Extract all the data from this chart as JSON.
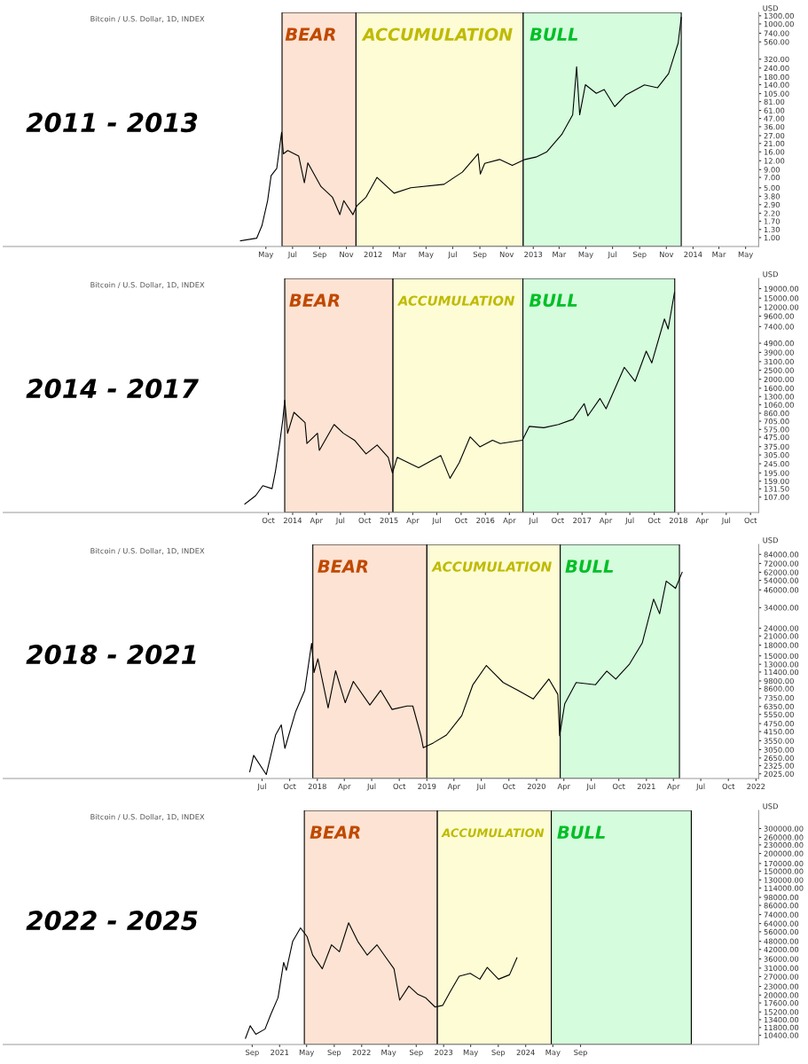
{
  "chart_data": [
    {
      "type": "line",
      "title": "2011 - 2013",
      "subtitle": "Bitcoin / U.S. Dollar, 1D, INDEX",
      "ylabel": "USD",
      "log": true,
      "x": [
        "2011-03-04",
        "2011-04-10",
        "2011-04-22",
        "2011-05-05",
        "2011-05-13",
        "2011-05-26",
        "2011-06-06",
        "2011-06-10",
        "2011-06-20",
        "2011-07-15",
        "2011-07-28",
        "2011-08-05",
        "2011-09-04",
        "2011-09-30",
        "2011-10-17",
        "2011-10-26",
        "2011-11-16",
        "2011-11-25",
        "2011-12-16",
        "2012-01-10",
        "2012-02-18",
        "2012-03-27",
        "2012-06-11",
        "2012-07-23",
        "2012-08-28",
        "2012-09-02",
        "2012-09-12",
        "2012-10-16",
        "2012-11-14",
        "2012-12-13",
        "2013-01-07",
        "2013-02-01",
        "2013-03-07",
        "2013-04-01",
        "2013-04-10",
        "2013-04-17",
        "2013-04-30",
        "2013-05-25",
        "2013-06-12",
        "2013-07-06",
        "2013-08-01",
        "2013-09-12",
        "2013-10-12",
        "2013-11-06",
        "2013-11-28",
        "2013-12-05"
      ],
      "series": [
        {
          "color": "#000000",
          "values": [
            0.9,
            0.98,
            1.47,
            3.3,
            7.4,
            9.4,
            30,
            15,
            16.7,
            14,
            5.9,
            11.2,
            5.2,
            3.7,
            2.1,
            3.3,
            2.1,
            2.8,
            3.7,
            7.0,
            4.2,
            5.0,
            5.6,
            8.3,
            15,
            7.8,
            11,
            12.5,
            10.3,
            12.5,
            13.5,
            16,
            28,
            53,
            250,
            53,
            140,
            106,
            120,
            69,
            101,
            139,
            127,
            200,
            540,
            1230
          ]
        }
      ],
      "xlim": [
        "2009-09-08",
        "2014-05-31"
      ],
      "ylim": [
        0.75,
        1450
      ],
      "xticks": [
        {
          "value": "2011-05-01",
          "label": "May"
        },
        {
          "value": "2011-07-01",
          "label": "Jul"
        },
        {
          "value": "2011-09-01",
          "label": "Sep"
        },
        {
          "value": "2011-11-01",
          "label": "Nov"
        },
        {
          "value": "2012-01-01",
          "label": "2012"
        },
        {
          "value": "2012-03-01",
          "label": "Mar"
        },
        {
          "value": "2012-05-01",
          "label": "May"
        },
        {
          "value": "2012-07-01",
          "label": "Jul"
        },
        {
          "value": "2012-09-01",
          "label": "Sep"
        },
        {
          "value": "2012-11-01",
          "label": "Nov"
        },
        {
          "value": "2013-01-01",
          "label": "2013"
        },
        {
          "value": "2013-03-01",
          "label": "Mar"
        },
        {
          "value": "2013-05-01",
          "label": "May"
        },
        {
          "value": "2013-07-01",
          "label": "Jul"
        },
        {
          "value": "2013-09-01",
          "label": "Sep"
        },
        {
          "value": "2013-11-01",
          "label": "Nov"
        },
        {
          "value": "2014-01-01",
          "label": "2014"
        },
        {
          "value": "2014-03-01",
          "label": "Mar"
        },
        {
          "value": "2014-05-01",
          "label": "May"
        }
      ],
      "yticks": [
        {
          "value": 1,
          "label": "1.00"
        },
        {
          "value": 1.3,
          "label": "1.30"
        },
        {
          "value": 1.7,
          "label": "1.70"
        },
        {
          "value": 2.2,
          "label": "2.20"
        },
        {
          "value": 2.9,
          "label": "2.90"
        },
        {
          "value": 3.8,
          "label": "3.80"
        },
        {
          "value": 5,
          "label": "5.00"
        },
        {
          "value": 7,
          "label": "7.00"
        },
        {
          "value": 9,
          "label": "9.00"
        },
        {
          "value": 12,
          "label": "12.00"
        },
        {
          "value": 16,
          "label": "16.00"
        },
        {
          "value": 21,
          "label": "21.00"
        },
        {
          "value": 27,
          "label": "27.00"
        },
        {
          "value": 36,
          "label": "36.00"
        },
        {
          "value": 47,
          "label": "47.00"
        },
        {
          "value": 61,
          "label": "61.00"
        },
        {
          "value": 81,
          "label": "81.00"
        },
        {
          "value": 105,
          "label": "105.00"
        },
        {
          "value": 140,
          "label": "140.00"
        },
        {
          "value": 180,
          "label": "180.00"
        },
        {
          "value": 240,
          "label": "240.00"
        },
        {
          "value": 320,
          "label": "320.00"
        },
        {
          "value": 560,
          "label": "560.00"
        },
        {
          "value": 740,
          "label": "740.00"
        },
        {
          "value": 1000,
          "label": "1000.00"
        },
        {
          "value": 1300,
          "label": "1300.00"
        }
      ],
      "bands": [
        {
          "axis": "x",
          "from": "2011-06-07",
          "to": "2011-11-23",
          "label": "BEAR",
          "color": "#fde3d3"
        },
        {
          "axis": "x",
          "from": "2011-11-23",
          "to": "2012-12-09",
          "label": "ACCUMULATION",
          "color": "#fdfcd5"
        },
        {
          "axis": "x",
          "from": "2012-12-09",
          "to": "2013-12-05",
          "label": "BULL",
          "color": "#d5fcdd"
        }
      ]
    },
    {
      "type": "line",
      "title": "2014 - 2017",
      "subtitle": "Bitcoin / U.S. Dollar, 1D, INDEX",
      "ylabel": "USD",
      "log": true,
      "x": [
        "2013-07-04",
        "2013-08-14",
        "2013-09-10",
        "2013-10-15",
        "2013-10-28",
        "2013-11-11",
        "2013-11-25",
        "2013-12-02",
        "2013-12-13",
        "2014-01-06",
        "2014-02-17",
        "2014-02-24",
        "2014-04-05",
        "2014-04-12",
        "2014-06-07",
        "2014-07-12",
        "2014-08-23",
        "2014-10-06",
        "2014-11-17",
        "2014-12-29",
        "2015-01-14",
        "2015-02-01",
        "2015-04-23",
        "2015-07-16",
        "2015-08-20",
        "2015-09-24",
        "2015-11-04",
        "2015-12-11",
        "2016-01-28",
        "2016-02-26",
        "2016-05-20",
        "2016-06-15",
        "2016-08-09",
        "2016-10-04",
        "2016-11-28",
        "2017-01-09",
        "2017-01-23",
        "2017-03-10",
        "2017-04-02",
        "2017-06-10",
        "2017-07-21",
        "2017-09-01",
        "2017-09-22",
        "2017-11-09",
        "2017-11-23",
        "2017-12-17"
      ],
      "series": [
        {
          "color": "#000000",
          "values": [
            90,
            111,
            142,
            132,
            204,
            372,
            740,
            1190,
            523,
            880,
            680,
            406,
            523,
            341,
            650,
            523,
            440,
            313,
            390,
            287,
            195,
            287,
            222,
            300,
            171,
            252,
            478,
            373,
            440,
            405,
            440,
            620,
            600,
            650,
            740,
            1090,
            806,
            1240,
            960,
            2690,
            1900,
            4020,
            3000,
            8940,
            6970,
            17300
          ]
        }
      ],
      "xlim": [
        "2011-01-01",
        "2018-11-01"
      ],
      "ylim": [
        73,
        24500
      ],
      "xticks": [
        {
          "value": "2013-10-01",
          "label": "Oct"
        },
        {
          "value": "2014-01-01",
          "label": "2014"
        },
        {
          "value": "2014-04-01",
          "label": "Apr"
        },
        {
          "value": "2014-07-01",
          "label": "Jul"
        },
        {
          "value": "2014-10-01",
          "label": "Oct"
        },
        {
          "value": "2015-01-01",
          "label": "2015"
        },
        {
          "value": "2015-04-01",
          "label": "Apr"
        },
        {
          "value": "2015-07-01",
          "label": "Jul"
        },
        {
          "value": "2015-10-01",
          "label": "Oct"
        },
        {
          "value": "2016-01-01",
          "label": "2016"
        },
        {
          "value": "2016-04-01",
          "label": "Apr"
        },
        {
          "value": "2016-07-01",
          "label": "Jul"
        },
        {
          "value": "2016-10-01",
          "label": "Oct"
        },
        {
          "value": "2017-01-01",
          "label": "2017"
        },
        {
          "value": "2017-04-01",
          "label": "Apr"
        },
        {
          "value": "2017-07-01",
          "label": "Jul"
        },
        {
          "value": "2017-10-01",
          "label": "Oct"
        },
        {
          "value": "2018-01-01",
          "label": "2018"
        },
        {
          "value": "2018-04-01",
          "label": "Apr"
        },
        {
          "value": "2018-07-01",
          "label": "Jul"
        },
        {
          "value": "2018-10-01",
          "label": "Oct"
        }
      ],
      "yticks": [
        {
          "value": 107,
          "label": "107.00"
        },
        {
          "value": 131.5,
          "label": "131.50"
        },
        {
          "value": 159,
          "label": "159.00"
        },
        {
          "value": 195,
          "label": "195.00"
        },
        {
          "value": 245,
          "label": "245.00"
        },
        {
          "value": 305,
          "label": "305.00"
        },
        {
          "value": 375,
          "label": "375.00"
        },
        {
          "value": 475,
          "label": "475.00"
        },
        {
          "value": 575,
          "label": "575.00"
        },
        {
          "value": 705,
          "label": "705.00"
        },
        {
          "value": 860,
          "label": "860.00"
        },
        {
          "value": 1060,
          "label": "1060.00"
        },
        {
          "value": 1300,
          "label": "1300.00"
        },
        {
          "value": 1600,
          "label": "1600.00"
        },
        {
          "value": 2000,
          "label": "2000.00"
        },
        {
          "value": 2500,
          "label": "2500.00"
        },
        {
          "value": 3100,
          "label": "3100.00"
        },
        {
          "value": 3900,
          "label": "3900.00"
        },
        {
          "value": 4900,
          "label": "4900.00"
        },
        {
          "value": 7400,
          "label": "7400.00"
        },
        {
          "value": 9600,
          "label": "9600.00"
        },
        {
          "value": 12000,
          "label": "12000.00"
        },
        {
          "value": 15000,
          "label": "15000.00"
        },
        {
          "value": 19000,
          "label": "19000.00"
        }
      ],
      "bands": [
        {
          "axis": "x",
          "from": "2013-12-02",
          "to": "2015-01-16",
          "label": "BEAR",
          "color": "#fde3d3"
        },
        {
          "axis": "x",
          "from": "2015-01-16",
          "to": "2016-05-22",
          "label": "ACCUMULATION",
          "color": "#fdfcd5"
        },
        {
          "axis": "x",
          "from": "2016-05-22",
          "to": "2017-12-18",
          "label": "BULL",
          "color": "#d5fcdd"
        }
      ]
    },
    {
      "type": "line",
      "title": "2018 - 2021",
      "subtitle": "Bitcoin / U.S. Dollar, 1D, INDEX",
      "ylabel": "USD",
      "log": true,
      "x": [
        "2017-05-21",
        "2017-06-03",
        "2017-07-15",
        "2017-08-15",
        "2017-09-03",
        "2017-09-15",
        "2017-10-21",
        "2017-11-20",
        "2017-12-13",
        "2017-12-21",
        "2018-01-03",
        "2018-02-06",
        "2018-03-03",
        "2018-04-04",
        "2018-05-01",
        "2018-06-25",
        "2018-07-31",
        "2018-09-07",
        "2018-10-27",
        "2018-11-15",
        "2018-12-12",
        "2018-12-20",
        "2019-01-22",
        "2019-03-07",
        "2019-04-27",
        "2019-06-03",
        "2019-07-18",
        "2019-09-12",
        "2019-11-01",
        "2019-12-21",
        "2020-02-11",
        "2020-03-12",
        "2020-03-18",
        "2020-04-04",
        "2020-05-12",
        "2020-07-15",
        "2020-08-22",
        "2020-09-21",
        "2020-11-06",
        "2020-12-18",
        "2021-01-25",
        "2021-02-14",
        "2021-03-08",
        "2021-04-08",
        "2021-04-30"
      ],
      "series": [
        {
          "color": "#000000",
          "values": [
            2100,
            2770,
            2000,
            3910,
            4650,
            3120,
            5830,
            8340,
            18570,
            11300,
            14270,
            6200,
            11650,
            6770,
            9720,
            6510,
            8340,
            6040,
            6400,
            6400,
            3870,
            3150,
            3420,
            3910,
            5440,
            9180,
            12740,
            9540,
            8340,
            7210,
            10120,
            7800,
            3870,
            6650,
            9540,
            9180,
            11590,
            10120,
            13080,
            18620,
            39300,
            30700,
            53400,
            47200,
            62000
          ]
        }
      ],
      "xlim": [
        "2015-02-20",
        "2022-01-10"
      ],
      "ylim": [
        1870,
        99500
      ],
      "xticks": [
        {
          "value": "2017-07-01",
          "label": "Jul"
        },
        {
          "value": "2017-10-01",
          "label": "Oct"
        },
        {
          "value": "2018-01-01",
          "label": "2018"
        },
        {
          "value": "2018-04-01",
          "label": "Apr"
        },
        {
          "value": "2018-07-01",
          "label": "Jul"
        },
        {
          "value": "2018-10-01",
          "label": "Oct"
        },
        {
          "value": "2019-01-01",
          "label": "2019"
        },
        {
          "value": "2019-04-01",
          "label": "Apr"
        },
        {
          "value": "2019-07-01",
          "label": "Jul"
        },
        {
          "value": "2019-10-01",
          "label": "Oct"
        },
        {
          "value": "2020-01-01",
          "label": "2020"
        },
        {
          "value": "2020-04-01",
          "label": "Apr"
        },
        {
          "value": "2020-07-01",
          "label": "Jul"
        },
        {
          "value": "2020-10-01",
          "label": "Oct"
        },
        {
          "value": "2021-01-01",
          "label": "2021"
        },
        {
          "value": "2021-04-01",
          "label": "Apr"
        },
        {
          "value": "2021-07-01",
          "label": "Jul"
        },
        {
          "value": "2021-10-01",
          "label": "Oct"
        },
        {
          "value": "2022-01-01",
          "label": "2022"
        }
      ],
      "yticks": [
        {
          "value": 2025,
          "label": "2025.00"
        },
        {
          "value": 2325,
          "label": "2325.00"
        },
        {
          "value": 2650,
          "label": "2650.00"
        },
        {
          "value": 3050,
          "label": "3050.00"
        },
        {
          "value": 3550,
          "label": "3550.00"
        },
        {
          "value": 4150,
          "label": "4150.00"
        },
        {
          "value": 4750,
          "label": "4750.00"
        },
        {
          "value": 5550,
          "label": "5550.00"
        },
        {
          "value": 6350,
          "label": "6350.00"
        },
        {
          "value": 7350,
          "label": "7350.00"
        },
        {
          "value": 8600,
          "label": "8600.00"
        },
        {
          "value": 9800,
          "label": "9800.00"
        },
        {
          "value": 11400,
          "label": "11400.00"
        },
        {
          "value": 13000,
          "label": "13000.00"
        },
        {
          "value": 15000,
          "label": "15000.00"
        },
        {
          "value": 18000,
          "label": "18000.00"
        },
        {
          "value": 21000,
          "label": "21000.00"
        },
        {
          "value": 24000,
          "label": "24000.00"
        },
        {
          "value": 34000,
          "label": "34000.00"
        },
        {
          "value": 46000,
          "label": "46000.00"
        },
        {
          "value": 54000,
          "label": "54000.00"
        },
        {
          "value": 62000,
          "label": "62000.00"
        },
        {
          "value": 72000,
          "label": "72000.00"
        },
        {
          "value": 84000,
          "label": "84000.00"
        }
      ],
      "bands": [
        {
          "axis": "x",
          "from": "2017-12-17",
          "to": "2019-01-01",
          "label": "BEAR",
          "color": "#fde3d3"
        },
        {
          "axis": "x",
          "from": "2019-01-01",
          "to": "2020-03-20",
          "label": "ACCUMULATION",
          "color": "#fdfcd5"
        },
        {
          "axis": "x",
          "from": "2020-03-20",
          "to": "2021-04-21",
          "label": "BULL",
          "color": "#d5fcdd"
        }
      ]
    },
    {
      "type": "line",
      "title": "2022 - 2025",
      "subtitle": "Bitcoin / U.S. Dollar, 1D, INDEX",
      "ylabel": "USD",
      "log": true,
      "x": [
        "2020-08-02",
        "2020-08-23",
        "2020-09-17",
        "2020-10-28",
        "2020-11-22",
        "2020-12-25",
        "2021-01-19",
        "2021-01-31",
        "2021-02-28",
        "2021-04-04",
        "2021-05-03",
        "2021-05-28",
        "2021-07-10",
        "2021-08-20",
        "2021-09-24",
        "2021-11-04",
        "2021-12-15",
        "2022-01-26",
        "2022-03-10",
        "2022-04-20",
        "2022-05-25",
        "2022-06-19",
        "2022-07-30",
        "2022-09-09",
        "2022-10-12",
        "2022-11-24",
        "2022-12-28",
        "2023-01-30",
        "2023-03-11",
        "2023-04-29",
        "2023-06-11",
        "2023-07-14",
        "2023-09-02",
        "2023-10-21",
        "2023-11-23"
      ],
      "series": [
        {
          "color": "#000000",
          "values": [
            9900,
            12140,
            10570,
            11500,
            14500,
            19180,
            34000,
            29930,
            47800,
            59600,
            51800,
            38300,
            30650,
            45300,
            40480,
            64800,
            47800,
            38300,
            45300,
            36640,
            30650,
            18400,
            23130,
            20190,
            19180,
            16460,
            16920,
            21110,
            27180,
            28450,
            25880,
            31380,
            25880,
            27810,
            36640
          ]
        }
      ],
      "xlim": [
        "2017-08-20",
        "2026-11-03"
      ],
      "ylim": [
        8950,
        403000
      ],
      "xticks": [
        {
          "value": "2020-09-01",
          "label": "Sep"
        },
        {
          "value": "2021-01-01",
          "label": "2021"
        },
        {
          "value": "2021-05-01",
          "label": "May"
        },
        {
          "value": "2021-09-01",
          "label": "Sep"
        },
        {
          "value": "2022-01-01",
          "label": "2022"
        },
        {
          "value": "2022-05-01",
          "label": "May"
        },
        {
          "value": "2022-09-01",
          "label": "Sep"
        },
        {
          "value": "2023-01-01",
          "label": "2023"
        },
        {
          "value": "2023-05-01",
          "label": "May"
        },
        {
          "value": "2023-09-01",
          "label": "Sep"
        },
        {
          "value": "2024-01-01",
          "label": "2024"
        },
        {
          "value": "2024-05-01",
          "label": "May"
        },
        {
          "value": "2024-09-01",
          "label": "Sep"
        }
      ],
      "yticks": [
        {
          "value": 10400,
          "label": "10400.00"
        },
        {
          "value": 11800,
          "label": "11800.00"
        },
        {
          "value": 13400,
          "label": "13400.00"
        },
        {
          "value": 15200,
          "label": "15200.00"
        },
        {
          "value": 17600,
          "label": "17600.00"
        },
        {
          "value": 20000,
          "label": "20000.00"
        },
        {
          "value": 23000,
          "label": "23000.00"
        },
        {
          "value": 27000,
          "label": "27000.00"
        },
        {
          "value": 31000,
          "label": "31000.00"
        },
        {
          "value": 36000,
          "label": "36000.00"
        },
        {
          "value": 42000,
          "label": "42000.00"
        },
        {
          "value": 48000,
          "label": "48000.00"
        },
        {
          "value": 56000,
          "label": "56000.00"
        },
        {
          "value": 64000,
          "label": "64000.00"
        },
        {
          "value": 74000,
          "label": "74000.00"
        },
        {
          "value": 86000,
          "label": "86000.00"
        },
        {
          "value": 98000,
          "label": "98000.00"
        },
        {
          "value": 114000,
          "label": "114000.00"
        },
        {
          "value": 130000,
          "label": "130000.00"
        },
        {
          "value": 150000,
          "label": "150000.00"
        },
        {
          "value": 170000,
          "label": "170000.00"
        },
        {
          "value": 200000,
          "label": "200000.00"
        },
        {
          "value": 230000,
          "label": "230000.00"
        },
        {
          "value": 260000,
          "label": "260000.00"
        },
        {
          "value": 300000,
          "label": "300000.00"
        }
      ],
      "bands": [
        {
          "axis": "x",
          "from": "2021-04-21",
          "to": "2022-12-04",
          "label": "BEAR",
          "color": "#fde3d3"
        },
        {
          "axis": "x",
          "from": "2022-12-04",
          "to": "2024-04-24",
          "label": "ACCUMULATION",
          "color": "#fdfcd5"
        },
        {
          "axis": "x",
          "from": "2024-04-24",
          "to": "2026-01-07",
          "label": "BULL",
          "color": "#d5fcdd"
        }
      ]
    }
  ]
}
